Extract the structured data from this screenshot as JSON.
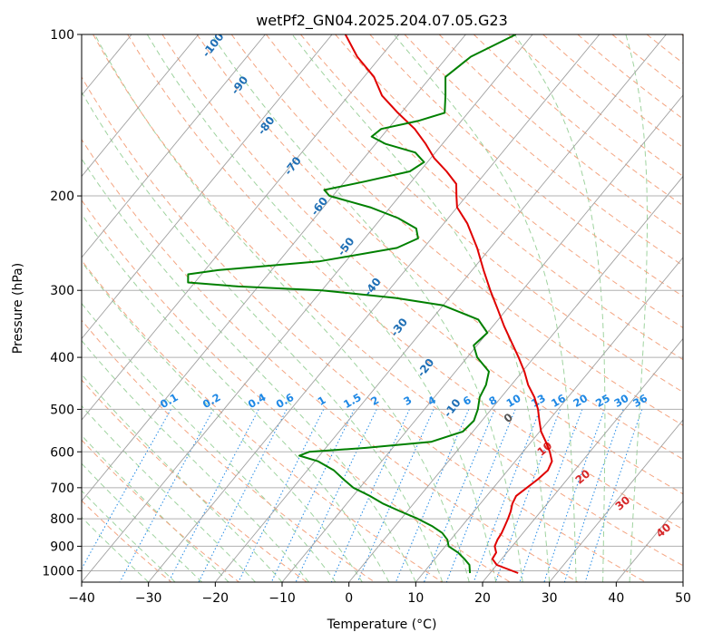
{
  "chart_data": {
    "type": "line",
    "title": "wetPf2_GN04.2025.204.07.05.G23",
    "xlabel": "Temperature (°C)",
    "ylabel": "Pressure (hPa)",
    "xlim": [
      -40,
      50
    ],
    "ylim": [
      1050,
      100
    ],
    "y_scale": "log",
    "skew": true,
    "grid": true,
    "x_ticks": [
      -40,
      -30,
      -20,
      -10,
      0,
      10,
      20,
      30,
      40,
      50
    ],
    "y_ticks": [
      100,
      200,
      300,
      400,
      500,
      600,
      700,
      800,
      900,
      1000
    ],
    "series": [
      {
        "role": "temperature",
        "color": "#e00000",
        "points": [
          [
            1010,
            24.2
          ],
          [
            975,
            20.0
          ],
          [
            950,
            18.6
          ],
          [
            925,
            18.4
          ],
          [
            900,
            17.4
          ],
          [
            875,
            17.0
          ],
          [
            850,
            16.8
          ],
          [
            825,
            16.4
          ],
          [
            800,
            16.0
          ],
          [
            775,
            15.5
          ],
          [
            750,
            14.8
          ],
          [
            725,
            14.4
          ],
          [
            700,
            15.0
          ],
          [
            675,
            15.6
          ],
          [
            650,
            16.0
          ],
          [
            625,
            15.5
          ],
          [
            600,
            14.0
          ],
          [
            575,
            12.2
          ],
          [
            550,
            10.2
          ],
          [
            525,
            8.6
          ],
          [
            500,
            7.0
          ],
          [
            475,
            5.0
          ],
          [
            450,
            2.5
          ],
          [
            425,
            0.3
          ],
          [
            400,
            -2.3
          ],
          [
            375,
            -5.2
          ],
          [
            350,
            -8.3
          ],
          [
            325,
            -11.4
          ],
          [
            300,
            -14.8
          ],
          [
            275,
            -18.3
          ],
          [
            250,
            -22.0
          ],
          [
            225,
            -26.5
          ],
          [
            210,
            -30.0
          ],
          [
            200,
            -31.5
          ],
          [
            190,
            -33.0
          ],
          [
            180,
            -36.0
          ],
          [
            170,
            -39.5
          ],
          [
            160,
            -42.5
          ],
          [
            150,
            -46.0
          ],
          [
            140,
            -50.5
          ],
          [
            130,
            -55.0
          ],
          [
            120,
            -58.5
          ],
          [
            110,
            -63.5
          ],
          [
            100,
            -68.0
          ]
        ]
      },
      {
        "role": "dewpoint",
        "color": "#008000",
        "points": [
          [
            1010,
            17.0
          ],
          [
            975,
            15.9
          ],
          [
            950,
            14.4
          ],
          [
            925,
            12.7
          ],
          [
            900,
            10.5
          ],
          [
            875,
            9.5
          ],
          [
            850,
            7.9
          ],
          [
            825,
            5.5
          ],
          [
            800,
            2.5
          ],
          [
            775,
            -1.0
          ],
          [
            750,
            -4.5
          ],
          [
            725,
            -7.5
          ],
          [
            700,
            -11.0
          ],
          [
            675,
            -13.5
          ],
          [
            650,
            -16.0
          ],
          [
            625,
            -19.5
          ],
          [
            610,
            -23.0
          ],
          [
            600,
            -22.0
          ],
          [
            590,
            -14.0
          ],
          [
            575,
            -5.0
          ],
          [
            550,
            -1.5
          ],
          [
            525,
            -1.2
          ],
          [
            500,
            -2.0
          ],
          [
            475,
            -3.2
          ],
          [
            450,
            -3.8
          ],
          [
            425,
            -5.0
          ],
          [
            400,
            -8.5
          ],
          [
            380,
            -10.5
          ],
          [
            360,
            -10.0
          ],
          [
            340,
            -13.0
          ],
          [
            320,
            -20.0
          ],
          [
            310,
            -28.0
          ],
          [
            300,
            -40.0
          ],
          [
            295,
            -53.0
          ],
          [
            290,
            -61.0
          ],
          [
            280,
            -62.0
          ],
          [
            275,
            -58.0
          ],
          [
            265,
            -44.0
          ],
          [
            250,
            -34.0
          ],
          [
            240,
            -32.0
          ],
          [
            230,
            -33.5
          ],
          [
            220,
            -37.5
          ],
          [
            210,
            -43.0
          ],
          [
            200,
            -50.5
          ],
          [
            195,
            -52.0
          ],
          [
            188,
            -47.0
          ],
          [
            180,
            -41.5
          ],
          [
            173,
            -40.5
          ],
          [
            166,
            -43.0
          ],
          [
            160,
            -48.5
          ],
          [
            155,
            -51.5
          ],
          [
            150,
            -51.0
          ],
          [
            145,
            -46.5
          ],
          [
            140,
            -43.5
          ],
          [
            130,
            -45.5
          ],
          [
            120,
            -47.8
          ],
          [
            110,
            -46.5
          ],
          [
            100,
            -42.5
          ]
        ]
      }
    ],
    "dry_adiabat_labels": [
      "-100",
      "-90",
      "-80",
      "-70",
      "-60",
      "-50",
      "-40",
      "-30",
      "-20",
      "-10"
    ],
    "moist_adiabat_labels": [
      "0",
      "10",
      "20",
      "30",
      "40"
    ],
    "mixing_ratio_labels": [
      "0.1",
      "0.2",
      "0.4",
      "0.6",
      "1",
      "1.5",
      "2",
      "3",
      "4",
      "6",
      "8",
      "10",
      "13",
      "16",
      "20",
      "25",
      "30",
      "36"
    ]
  },
  "colors": {
    "temperature": "#e00000",
    "dewpoint": "#008000",
    "isotherm": "#a0a0a0",
    "isobar": "#b0b0b0",
    "dry_adiabat": "#f4a582",
    "moist_adiabat": "#9fd39f",
    "mixing_ratio": "#1e88e5",
    "dry_adiabat_label": "#1f6fb5",
    "moist_adiabat_label": "#d62728",
    "frame": "#000000"
  }
}
